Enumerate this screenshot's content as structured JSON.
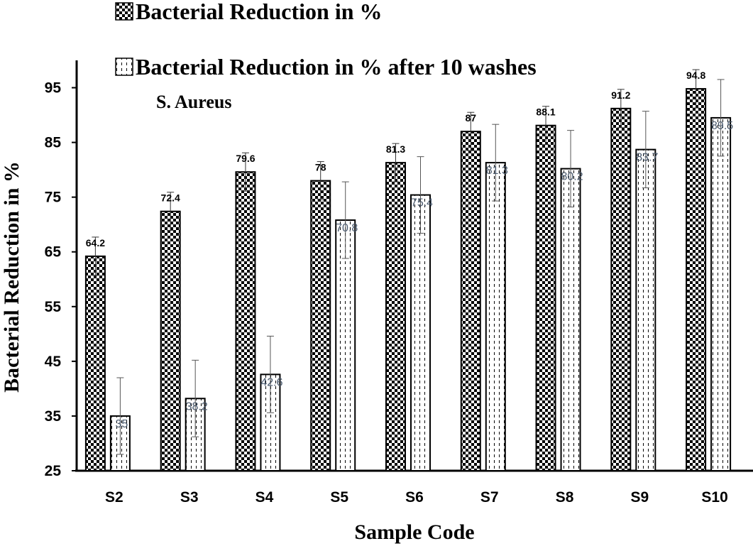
{
  "chart_data": {
    "type": "bar",
    "categories": [
      "S2",
      "S3",
      "S4",
      "S5",
      "S6",
      "S7",
      "S8",
      "S9",
      "S10"
    ],
    "series": [
      {
        "name": "Bacterial Reduction in %",
        "values": [
          64.2,
          72.4,
          79.6,
          78,
          81.3,
          87,
          88.1,
          91.2,
          94.8
        ],
        "labels": [
          "64.2",
          "72.4",
          "79.6",
          "78",
          "81.3",
          "87",
          "88.1",
          "91.2",
          "94.8"
        ],
        "error": [
          3.5,
          3.5,
          3.5,
          3.5,
          3.5,
          3.5,
          3.5,
          3.5,
          3.5
        ],
        "pattern": "checkered"
      },
      {
        "name": "Bacterial Reduction in % after 10 washes",
        "values": [
          35,
          38.2,
          42.6,
          70.8,
          75.4,
          81.3,
          80.2,
          83.7,
          89.5
        ],
        "labels": [
          "35",
          "38.2",
          "42.6",
          "70.8",
          "75.4",
          "81.3",
          "80.2",
          "83.7",
          "89.5"
        ],
        "error": [
          7,
          7,
          7,
          7,
          7,
          7,
          7,
          7,
          7
        ],
        "pattern": "dashed"
      }
    ],
    "title": "",
    "annotation": "S. Aureus",
    "xlabel": "Sample  Code",
    "ylabel": "Bacterial Reduction in %",
    "ylim": [
      25,
      100
    ],
    "yticks": [
      25,
      35,
      45,
      55,
      65,
      75,
      85,
      95
    ],
    "ytick_labels": [
      "25",
      "35",
      "45",
      "55",
      "65",
      "75",
      "85",
      "95"
    ],
    "grid": false,
    "legend_position": "top-left"
  }
}
